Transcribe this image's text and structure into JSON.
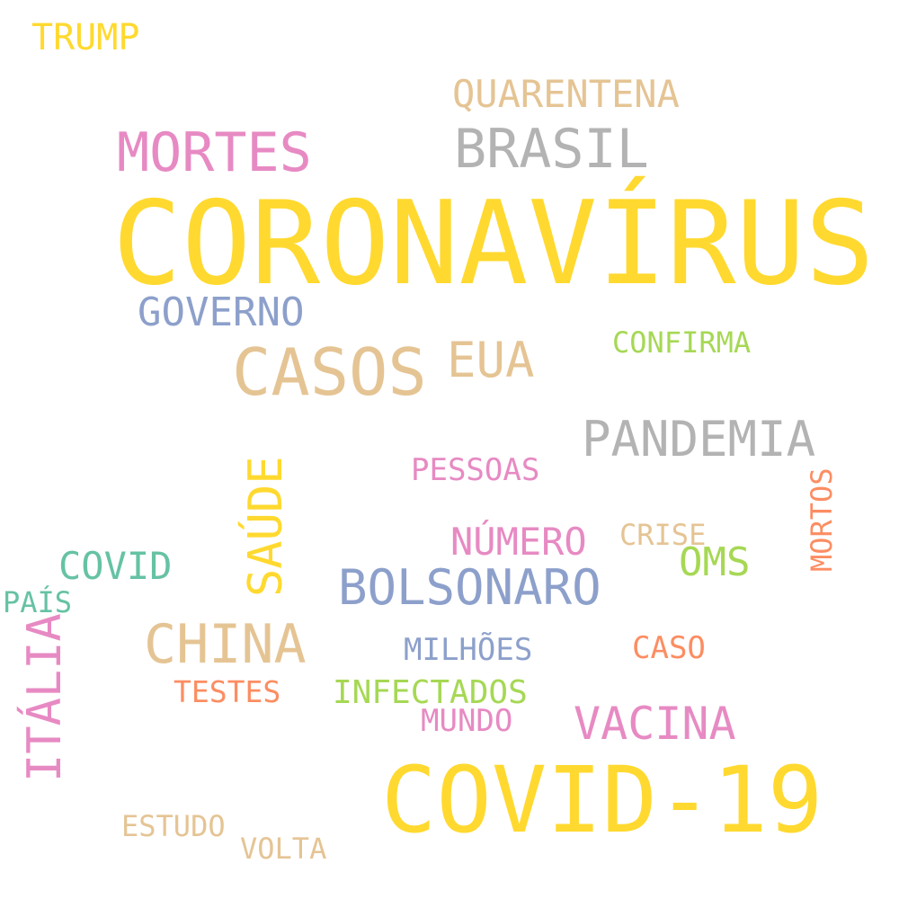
{
  "colors": {
    "yellow": "#FFD92F",
    "pink": "#E78AC3",
    "gray": "#B3B3B3",
    "tan": "#E5C494",
    "blue": "#8DA0CB",
    "green": "#A6D854",
    "teal": "#66C2A5",
    "orange": "#FC8D62"
  },
  "words": {
    "trump": "TRUMP",
    "quarentena": "QUARENTENA",
    "mortes": "MORTES",
    "brasil": "BRASIL",
    "coronavirus": "CORONAVÍRUS",
    "governo": "GOVERNO",
    "casos": "CASOS",
    "eua": "EUA",
    "confirma": "CONFIRMA",
    "pandemia": "PANDEMIA",
    "saude": "SAÚDE",
    "pessoas": "PESSOAS",
    "mortos": "MORTOS",
    "numero": "NÚMERO",
    "crise": "CRISE",
    "covid": "COVID",
    "oms": "OMS",
    "bolsonaro": "BOLSONARO",
    "pais": "PAÍS",
    "italia": "ITÁLIA",
    "china": "CHINA",
    "milhoes": "MILHÕES",
    "caso": "CASO",
    "testes": "TESTES",
    "infectados": "INFECTADOS",
    "mundo": "MUNDO",
    "vacina": "VACINA",
    "covid19": "COVID-19",
    "estudo": "ESTUDO",
    "volta": "VOLTA"
  }
}
